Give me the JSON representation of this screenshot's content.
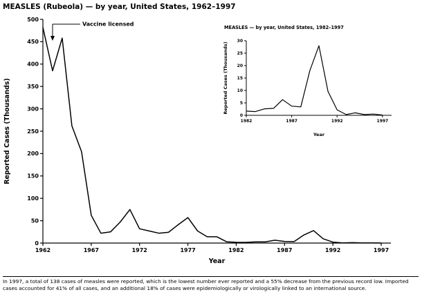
{
  "page_title": "MEASLES (Rubeola) — by year, United States, 1962–1997",
  "footnote": "In 1997, a total of 138 cases of measles were reported, which is the lowest number ever reported and a 55% decrease from the previous record low. Imported cases accounted for 41% of all cases, and an additional 18% of cases were epidemiologically or virologically linked to an international source.",
  "chart_data": [
    {
      "type": "line",
      "title": "MEASLES (Rubeola) — by year, United States, 1962–1997",
      "xlabel": "Year",
      "ylabel": "Reported Cases (Thousands)",
      "x": [
        1962,
        1963,
        1964,
        1965,
        1966,
        1967,
        1968,
        1969,
        1970,
        1971,
        1972,
        1973,
        1974,
        1975,
        1976,
        1977,
        1978,
        1979,
        1980,
        1981,
        1982,
        1983,
        1984,
        1985,
        1986,
        1987,
        1988,
        1989,
        1990,
        1991,
        1992,
        1993,
        1994,
        1995,
        1996,
        1997
      ],
      "values": [
        482,
        385,
        458,
        262,
        204,
        62,
        22,
        25,
        47,
        75,
        32,
        27,
        22,
        24,
        41,
        57,
        27,
        14,
        14,
        3,
        1.7,
        1.5,
        2.6,
        2.8,
        6.3,
        3.7,
        3.4,
        18,
        28,
        9.6,
        2.2,
        0.3,
        1,
        0.3,
        0.5,
        0.1
      ],
      "xlim": [
        1962,
        1998
      ],
      "ylim": [
        0,
        500
      ],
      "xticks": [
        1962,
        1967,
        1972,
        1977,
        1982,
        1987,
        1992,
        1997
      ],
      "yticks": [
        0,
        50,
        100,
        150,
        200,
        250,
        300,
        350,
        400,
        450,
        500
      ],
      "grid": false,
      "legend": "none",
      "annotations": [
        {
          "text": "Vaccine licensed",
          "x": 1963
        }
      ]
    },
    {
      "type": "line",
      "title": "MEASLES — by year, United States, 1982–1997",
      "xlabel": "Year",
      "ylabel": "Reported Cases (Thousands)",
      "x": [
        1982,
        1983,
        1984,
        1985,
        1986,
        1987,
        1988,
        1989,
        1990,
        1991,
        1992,
        1993,
        1994,
        1995,
        1996,
        1997
      ],
      "values": [
        1.7,
        1.5,
        2.6,
        2.8,
        6.3,
        3.7,
        3.4,
        18,
        28,
        9.6,
        2.2,
        0.3,
        1,
        0.3,
        0.5,
        0.1
      ],
      "xlim": [
        1982,
        1998
      ],
      "ylim": [
        0,
        30
      ],
      "xticks": [
        1982,
        1987,
        1992,
        1997
      ],
      "yticks": [
        0,
        5,
        10,
        15,
        20,
        25,
        30
      ],
      "grid": false,
      "legend": "none"
    }
  ]
}
